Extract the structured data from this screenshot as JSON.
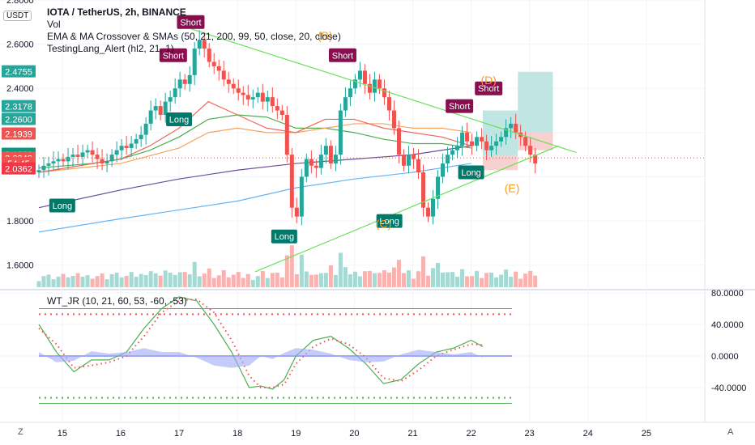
{
  "header": {
    "title": "IOTA / TetherUS, 2h, BINANCE",
    "indicators": [
      "Vol",
      "EMA & MA Crossover & SMAs (50, 21, 200, 99, 50, close, 20, close)",
      "TestingLang_Alert (hl2, 21, 1)"
    ],
    "unit": "USDT"
  },
  "oscillator": {
    "label": "WT_JR (10, 21, 60, 53, -60, -53)"
  },
  "price_badges": [
    {
      "text": "2.4755",
      "color": "#26a69a",
      "value": 2.4755
    },
    {
      "text": "2.3178",
      "color": "#26a69a",
      "value": 2.3178
    },
    {
      "text": "2.2600",
      "color": "#26a69a",
      "value": 2.26
    },
    {
      "text": "2.1939",
      "color": "#ef5350",
      "value": 2.1939
    },
    {
      "text": "2.1023",
      "color": "#089981",
      "value": 2.1023
    },
    {
      "text": "2.0848",
      "color": "#ef5350",
      "value": 2.0848
    },
    {
      "text": "54:45",
      "color": "#ef5350",
      "value": 2.061
    },
    {
      "text": "2.0362",
      "color": "#f23645",
      "value": 2.0362
    }
  ],
  "corners": {
    "bottom_left": "Z",
    "bottom_right": "A"
  },
  "chart_data": [
    {
      "type": "candlestick",
      "title": "IOTA / TetherUS, 2h, BINANCE",
      "y_ticks": [
        1.6,
        1.8,
        2.0,
        2.2,
        2.4,
        2.6,
        2.8
      ],
      "y_tick_labels": [
        "1.6000",
        "1.8000",
        "",
        "",
        "2.4000",
        "2.6000",
        "2.8000"
      ],
      "ylim": [
        1.5,
        2.8
      ],
      "x_ticks": [
        15,
        16,
        17,
        18,
        19,
        20,
        21,
        22,
        23,
        24,
        25
      ],
      "x_tick_labels": [
        "15",
        "16",
        "17",
        "18",
        "19",
        "20",
        "21",
        "22",
        "23",
        "24",
        "25"
      ],
      "xlim": [
        14.6,
        26.0
      ],
      "colors": {
        "up": "#26a69a",
        "down": "#ef5350",
        "ema": "#f7a35c",
        "sma": "#f0675c",
        "ma200": "#6a4f9c",
        "ma_blue": "#64b5f6",
        "ma_green": "#4caf50",
        "trendline": "#69e05a"
      },
      "candle_closes": [
        2.03,
        2.05,
        2.06,
        2.07,
        2.08,
        2.07,
        2.09,
        2.1,
        2.09,
        2.11,
        2.12,
        2.1,
        2.08,
        2.06,
        2.07,
        2.1,
        2.12,
        2.14,
        2.13,
        2.15,
        2.17,
        2.19,
        2.24,
        2.3,
        2.32,
        2.28,
        2.34,
        2.36,
        2.4,
        2.44,
        2.42,
        2.46,
        2.58,
        2.62,
        2.58,
        2.52,
        2.5,
        2.48,
        2.44,
        2.42,
        2.4,
        2.38,
        2.37,
        2.35,
        2.36,
        2.38,
        2.34,
        2.36,
        2.32,
        2.3,
        2.28,
        2.1,
        1.86,
        1.82,
        2.0,
        2.08,
        2.05,
        2.04,
        2.1,
        2.14,
        2.06,
        2.1,
        2.3,
        2.36,
        2.4,
        2.44,
        2.48,
        2.42,
        2.38,
        2.44,
        2.4,
        2.36,
        2.3,
        2.22,
        2.1,
        2.05,
        2.1,
        2.08,
        2.02,
        1.86,
        1.82,
        1.9,
        2.0,
        2.06,
        2.1,
        2.12,
        2.14,
        2.2,
        2.16,
        2.14,
        2.18,
        2.16,
        2.12,
        2.14,
        2.16,
        2.18,
        2.22,
        2.24,
        2.2,
        2.18,
        2.14,
        2.1,
        2.06
      ],
      "x_start": 14.6,
      "x_step": 0.0833,
      "moving_averages": {
        "ma200": [
          [
            14.6,
            1.86
          ],
          [
            16,
            1.94
          ],
          [
            17,
            1.99
          ],
          [
            18,
            2.03
          ],
          [
            19,
            2.06
          ],
          [
            20,
            2.08
          ],
          [
            21,
            2.1
          ],
          [
            22,
            2.14
          ]
        ],
        "ma_blue": [
          [
            14.6,
            1.75
          ],
          [
            16,
            1.81
          ],
          [
            17,
            1.85
          ],
          [
            18,
            1.89
          ],
          [
            19,
            1.95
          ],
          [
            20,
            1.99
          ],
          [
            21,
            2.02
          ],
          [
            22,
            2.06
          ]
        ],
        "ma_green": [
          [
            14.6,
            2.04
          ],
          [
            15.5,
            2.06
          ],
          [
            16,
            2.08
          ],
          [
            16.5,
            2.12
          ],
          [
            17,
            2.18
          ],
          [
            17.5,
            2.26
          ],
          [
            18,
            2.28
          ],
          [
            18.5,
            2.27
          ],
          [
            19,
            2.22
          ],
          [
            19.5,
            2.22
          ],
          [
            20,
            2.2
          ],
          [
            20.5,
            2.17
          ],
          [
            21,
            2.15
          ],
          [
            21.5,
            2.15
          ],
          [
            22,
            2.13
          ]
        ],
        "ema": [
          [
            14.6,
            2.02
          ],
          [
            16,
            2.06
          ],
          [
            17,
            2.13
          ],
          [
            17.5,
            2.2
          ],
          [
            18,
            2.22
          ],
          [
            18.5,
            2.2
          ],
          [
            19,
            2.2
          ],
          [
            19.5,
            2.22
          ],
          [
            20,
            2.24
          ],
          [
            20.5,
            2.24
          ],
          [
            21,
            2.22
          ],
          [
            21.5,
            2.22
          ],
          [
            22,
            2.2
          ]
        ],
        "sma": [
          [
            14.6,
            2.02
          ],
          [
            16,
            2.08
          ],
          [
            16.5,
            2.14
          ],
          [
            17,
            2.22
          ],
          [
            17.5,
            2.34
          ],
          [
            18,
            2.28
          ],
          [
            18.5,
            2.22
          ],
          [
            19,
            2.2
          ],
          [
            19.5,
            2.26
          ],
          [
            20,
            2.26
          ],
          [
            20.5,
            2.22
          ],
          [
            21,
            2.2
          ],
          [
            21.5,
            2.18
          ],
          [
            22,
            2.14
          ]
        ]
      },
      "trendlines": [
        {
          "from": [
            17.2,
            2.67
          ],
          "to": [
            23.8,
            2.11
          ]
        },
        {
          "from": [
            18.3,
            1.57
          ],
          "to": [
            23.5,
            2.14
          ]
        }
      ],
      "position_boxes": [
        {
          "x0": 22.2,
          "x1": 22.8,
          "top": 2.3,
          "bottom": 2.095,
          "color": "#b2dfdb"
        },
        {
          "x0": 22.2,
          "x1": 22.8,
          "top": 2.095,
          "bottom": 2.03,
          "color": "#f8c4c4"
        },
        {
          "x0": 22.8,
          "x1": 23.4,
          "top": 2.475,
          "bottom": 2.2,
          "color": "#b2dfdb"
        },
        {
          "x0": 22.8,
          "x1": 23.4,
          "top": 2.2,
          "bottom": 2.12,
          "color": "#f8c4c4"
        }
      ],
      "annotations": [
        {
          "text": "Short",
          "x": 16.9,
          "y": 2.55,
          "kind": "short"
        },
        {
          "text": "Short",
          "x": 17.2,
          "y": 2.7,
          "kind": "short",
          "label_y": 2.7
        },
        {
          "text": "Short",
          "x": 19.8,
          "y": 2.55,
          "kind": "short"
        },
        {
          "text": "Short",
          "x": 21.8,
          "y": 2.32,
          "kind": "short"
        },
        {
          "text": "Short",
          "x": 22.3,
          "y": 2.4,
          "kind": "short"
        },
        {
          "text": "Long",
          "x": 15.0,
          "y": 1.87,
          "kind": "long"
        },
        {
          "text": "Long",
          "x": 17.0,
          "y": 2.26,
          "kind": "long"
        },
        {
          "text": "Long",
          "x": 18.8,
          "y": 1.73,
          "kind": "long"
        },
        {
          "text": "Long",
          "x": 20.6,
          "y": 1.8,
          "kind": "long"
        },
        {
          "text": "Long",
          "x": 22.0,
          "y": 2.02,
          "kind": "long"
        }
      ],
      "wave_labels": [
        {
          "text": "(B)",
          "x": 19.5,
          "y": 2.62
        },
        {
          "text": "(C)",
          "x": 20.5,
          "y": 1.77
        },
        {
          "text": "(D)",
          "x": 22.3,
          "y": 2.42
        },
        {
          "text": "(E)",
          "x": 22.7,
          "y": 1.93
        }
      ],
      "last_price": 2.0848
    },
    {
      "type": "line",
      "title": "WT_JR (10, 21, 60, 53, -60, -53)",
      "ylim": [
        -80,
        80
      ],
      "y_ticks": [
        -40,
        0,
        40,
        80
      ],
      "y_tick_labels": [
        "-40.0000",
        "0.0000",
        "40.0000",
        "80.0000"
      ],
      "levels": [
        {
          "value": 60,
          "style": "solid",
          "color": "#ef5350"
        },
        {
          "value": 53,
          "style": "dotted",
          "color": "#ef5350"
        },
        {
          "value": -53,
          "style": "dotted",
          "color": "#4caf50"
        },
        {
          "value": -60,
          "style": "solid",
          "color": "#4caf50"
        }
      ],
      "series": [
        {
          "key": "wt1",
          "color": "#4caf50",
          "x": [
            14.6,
            14.9,
            15.2,
            15.5,
            15.8,
            16.1,
            16.4,
            16.7,
            17.0,
            17.3,
            17.6,
            17.9,
            18.2,
            18.4,
            18.6,
            18.8,
            19.0,
            19.3,
            19.6,
            19.9,
            20.2,
            20.5,
            20.8,
            21.1,
            21.4,
            21.7,
            22.0,
            22.2
          ],
          "values": [
            40,
            5,
            -20,
            -5,
            -5,
            5,
            35,
            60,
            75,
            70,
            40,
            5,
            -40,
            -38,
            -42,
            -30,
            0,
            20,
            25,
            10,
            -10,
            -35,
            -30,
            -10,
            5,
            10,
            20,
            12
          ]
        },
        {
          "key": "wt2",
          "color": "#ef5350",
          "dotted": true,
          "x": [
            14.6,
            14.9,
            15.2,
            15.5,
            15.8,
            16.1,
            16.4,
            16.7,
            17.0,
            17.3,
            17.6,
            17.9,
            18.2,
            18.4,
            18.6,
            18.8,
            19.0,
            19.3,
            19.6,
            19.9,
            20.2,
            20.5,
            20.8,
            21.1,
            21.4,
            21.7,
            22.0,
            22.2
          ],
          "values": [
            35,
            15,
            -15,
            -12,
            -8,
            0,
            25,
            55,
            70,
            72,
            55,
            20,
            -25,
            -40,
            -40,
            -36,
            -10,
            12,
            22,
            15,
            -2,
            -28,
            -32,
            -18,
            0,
            8,
            15,
            14
          ]
        },
        {
          "key": "area",
          "color": "#9fa8f7",
          "x": [
            14.6,
            14.9,
            15.2,
            15.5,
            15.8,
            16.1,
            16.4,
            16.7,
            17.0,
            17.3,
            17.6,
            17.9,
            18.2,
            18.4,
            18.6,
            18.8,
            19.0,
            19.3,
            19.6,
            19.9,
            20.2,
            20.5,
            20.8,
            21.1,
            21.4,
            21.7,
            22.0,
            22.2
          ],
          "values": [
            5,
            -8,
            -6,
            6,
            3,
            5,
            10,
            5,
            5,
            -2,
            -12,
            -15,
            -12,
            0,
            -4,
            4,
            10,
            8,
            3,
            -5,
            -8,
            -7,
            2,
            8,
            5,
            2,
            5,
            -2
          ]
        }
      ]
    }
  ]
}
